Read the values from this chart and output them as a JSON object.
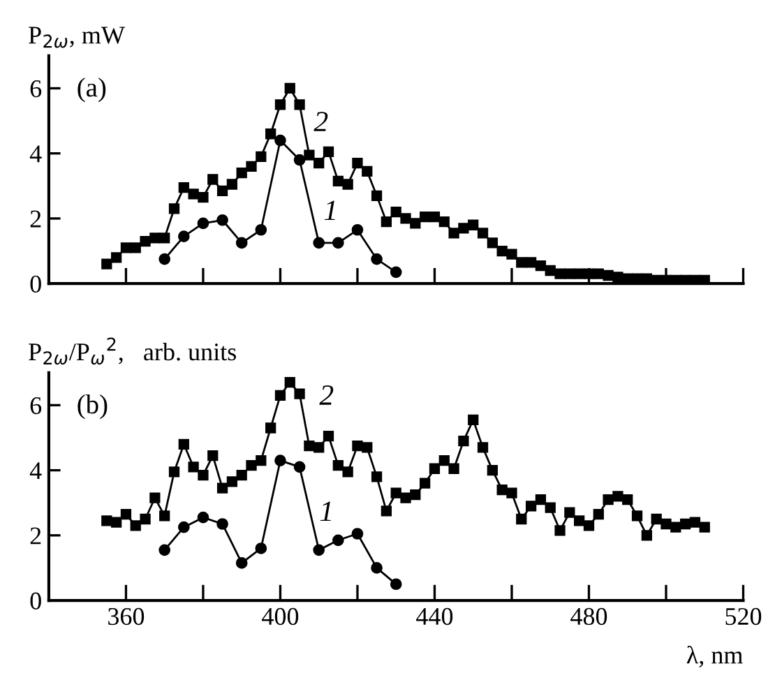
{
  "chart_data": [
    {
      "type": "line",
      "ylabel": "P$_{2ω}$, mW",
      "xlim": [
        340,
        520
      ],
      "ylim": [
        0,
        7
      ],
      "tick_labels": "y",
      "grid": false,
      "legend": false,
      "xticks": [
        {
          "value": 360,
          "label": null
        },
        {
          "value": 380,
          "label": null
        },
        {
          "value": 400,
          "label": null
        },
        {
          "value": 420,
          "label": null
        },
        {
          "value": 440,
          "label": null
        },
        {
          "value": 460,
          "label": null
        },
        {
          "value": 480,
          "label": null
        },
        {
          "value": 500,
          "label": null
        },
        {
          "value": 520,
          "label": null
        }
      ],
      "yticks": [
        0,
        2,
        4,
        6
      ],
      "annotations": [
        "(a)",
        "2",
        "1"
      ],
      "series": [
        {
          "color": "#000000",
          "marker": "square",
          "x": [
            355,
            357.5,
            360,
            362.5,
            365,
            367.5,
            370,
            372.5,
            375,
            377.5,
            380,
            382.5,
            385,
            387.5,
            390,
            392.5,
            395,
            397.5,
            400,
            402.5,
            405,
            407.5,
            410,
            412.5,
            415,
            417.5,
            420,
            422.5,
            425,
            427.5,
            430,
            432.5,
            435,
            437.5,
            440,
            442.5,
            445,
            447.5,
            450,
            452.5,
            455,
            457.5,
            460,
            462.5,
            465,
            467.5,
            470,
            472.5,
            475,
            477.5,
            480,
            482.5,
            485,
            487.5,
            490,
            492.5,
            495,
            497.5,
            500,
            502.5,
            505,
            507.5,
            510
          ],
          "values": [
            0.6,
            0.8,
            1.1,
            1.1,
            1.3,
            1.4,
            1.4,
            2.3,
            2.95,
            2.75,
            2.65,
            3.2,
            2.85,
            3.05,
            3.4,
            3.6,
            3.9,
            4.6,
            5.5,
            6.0,
            5.5,
            3.95,
            3.7,
            4.05,
            3.15,
            3.05,
            3.7,
            3.45,
            2.7,
            1.9,
            2.2,
            2.0,
            1.85,
            2.05,
            2.05,
            1.9,
            1.55,
            1.7,
            1.8,
            1.55,
            1.25,
            1.0,
            0.9,
            0.65,
            0.65,
            0.55,
            0.4,
            0.3,
            0.3,
            0.3,
            0.3,
            0.3,
            0.25,
            0.2,
            0.15,
            0.15,
            0.15,
            0.1,
            0.1,
            0.1,
            0.1,
            0.1,
            0.1
          ]
        },
        {
          "color": "#000000",
          "marker": "circle",
          "x": [
            370,
            375,
            380,
            385,
            390,
            395,
            400,
            405,
            410,
            415,
            420,
            425,
            430
          ],
          "values": [
            0.75,
            1.45,
            1.85,
            1.95,
            1.25,
            1.65,
            4.4,
            3.8,
            1.25,
            1.25,
            1.65,
            0.75,
            0.35
          ]
        }
      ]
    },
    {
      "type": "line",
      "ylabel": "P$_{2ω}$/P$_{ω}$$^{2}$,   arb. units",
      "xlabel": "λ, nm",
      "xlim": [
        340,
        520
      ],
      "ylim": [
        0,
        7
      ],
      "grid": false,
      "legend": false,
      "xticks": [
        360,
        {
          "value": 380,
          "label": null
        },
        400,
        {
          "value": 420,
          "label": null
        },
        440,
        {
          "value": 460,
          "label": null
        },
        480,
        {
          "value": 500,
          "label": null
        },
        520
      ],
      "yticks": [
        0,
        2,
        4,
        6
      ],
      "annotations": [
        "(b)",
        "2",
        "1"
      ],
      "series": [
        {
          "color": "#000000",
          "marker": "square",
          "x": [
            355,
            357.5,
            360,
            362.5,
            365,
            367.5,
            370,
            372.5,
            375,
            377.5,
            380,
            382.5,
            385,
            387.5,
            390,
            392.5,
            395,
            397.5,
            400,
            402.5,
            405,
            407.5,
            410,
            412.5,
            415,
            417.5,
            420,
            422.5,
            425,
            427.5,
            430,
            432.5,
            435,
            437.5,
            440,
            442.5,
            445,
            447.5,
            450,
            452.5,
            455,
            457.5,
            460,
            462.5,
            465,
            467.5,
            470,
            472.5,
            475,
            477.5,
            480,
            482.5,
            485,
            487.5,
            490,
            492.5,
            495,
            497.5,
            500,
            502.5,
            505,
            507.5,
            510
          ],
          "values": [
            2.45,
            2.4,
            2.65,
            2.3,
            2.5,
            3.15,
            2.6,
            3.95,
            4.8,
            4.1,
            3.85,
            4.45,
            3.45,
            3.65,
            3.85,
            4.15,
            4.3,
            5.3,
            6.3,
            6.7,
            6.35,
            4.75,
            4.7,
            5.05,
            4.15,
            3.95,
            4.75,
            4.7,
            3.8,
            2.75,
            3.3,
            3.15,
            3.25,
            3.6,
            4.05,
            4.3,
            4.05,
            4.9,
            5.55,
            4.7,
            4.0,
            3.4,
            3.3,
            2.5,
            2.9,
            3.1,
            2.85,
            2.15,
            2.7,
            2.45,
            2.3,
            2.65,
            3.1,
            3.2,
            3.1,
            2.6,
            2.0,
            2.5,
            2.35,
            2.25,
            2.35,
            2.4,
            2.25
          ]
        },
        {
          "color": "#000000",
          "marker": "circle",
          "x": [
            370,
            375,
            380,
            385,
            390,
            395,
            400,
            405,
            410,
            415,
            420,
            425,
            430
          ],
          "values": [
            1.55,
            2.25,
            2.55,
            2.35,
            1.15,
            1.6,
            4.3,
            4.1,
            1.55,
            1.85,
            2.05,
            1.0,
            0.5
          ]
        }
      ]
    }
  ]
}
